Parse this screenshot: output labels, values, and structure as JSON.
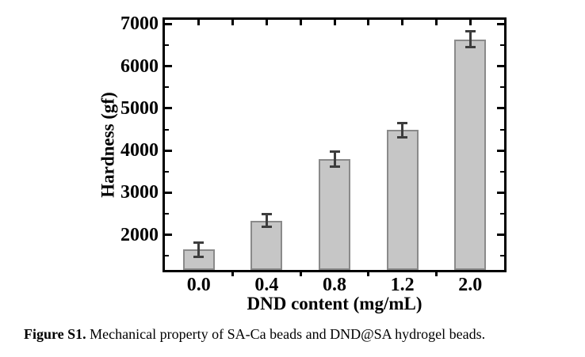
{
  "figure": {
    "caption": {
      "label": "Figure S1.",
      "text": " Mechanical property of SA-Ca beads and DND@SA hydrogel beads."
    }
  },
  "chart_data": {
    "type": "bar",
    "title": "",
    "xlabel": "DND content (mg/mL)",
    "ylabel": "Hardness (gf)",
    "categories": [
      "0.0",
      "0.4",
      "0.8",
      "1.2",
      "2.0"
    ],
    "values": [
      1650,
      2340,
      3790,
      4490,
      6640
    ],
    "errors": [
      170,
      150,
      180,
      170,
      190
    ],
    "y_major_ticks": [
      2000,
      3000,
      4000,
      5000,
      6000,
      7000
    ],
    "y_minor_ticks": [
      1500,
      2500,
      3500,
      4500,
      5500,
      6500
    ],
    "ylim": [
      1170,
      7100
    ],
    "grid": false,
    "legend": null,
    "colors": {
      "bar_fill": "#c6c6c6",
      "bar_border": "#8a8a8a",
      "error_bar": "#3d3d3d",
      "axis": "#000000",
      "text": "#000000",
      "background": "#ffffff"
    }
  }
}
